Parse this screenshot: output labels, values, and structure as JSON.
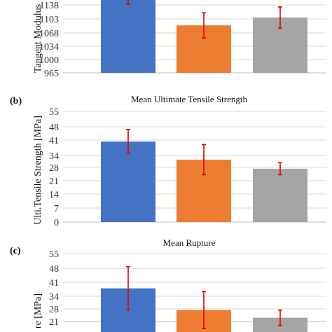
{
  "colors": {
    "bar_colors": [
      "#4472c4",
      "#ed7d31",
      "#a5a5a5"
    ],
    "error_bar": "#e00000",
    "grid": "#d9d9d9",
    "axis": "#bfbfbf"
  },
  "chart_data": [
    {
      "type": "bar",
      "panel": "",
      "title": "",
      "ylabel": "Tangent Modulus",
      "yticks": [
        "965",
        "1000",
        "1034",
        "1068",
        "1103",
        "1138"
      ],
      "ylim": [
        965,
        1172
      ],
      "grid": true,
      "values": [
        1160,
        1086,
        1106
      ],
      "errors": [
        20,
        32,
        27
      ]
    },
    {
      "type": "bar",
      "panel": "(b)",
      "title": "Mean Ultimate Tensile Strength",
      "ylabel": "Ulti.Tensile Strength [MPa]",
      "yticks": [
        "0",
        "7",
        "14",
        "21",
        "28",
        "34",
        "41",
        "48",
        "55"
      ],
      "ylim": [
        0,
        55
      ],
      "grid": true,
      "values": [
        40,
        31,
        26.5
      ],
      "errors": [
        6,
        7.5,
        3
      ]
    },
    {
      "type": "bar",
      "panel": "(c)",
      "title": "Mean Rupture",
      "ylabel": "re [MPa]",
      "yticks": [
        "21",
        "28",
        "34",
        "41",
        "48",
        "55"
      ],
      "ylim": [
        17,
        55
      ],
      "grid": true,
      "values": [
        39,
        29,
        25.5
      ],
      "errors": [
        10,
        8.5,
        3.5
      ]
    }
  ]
}
